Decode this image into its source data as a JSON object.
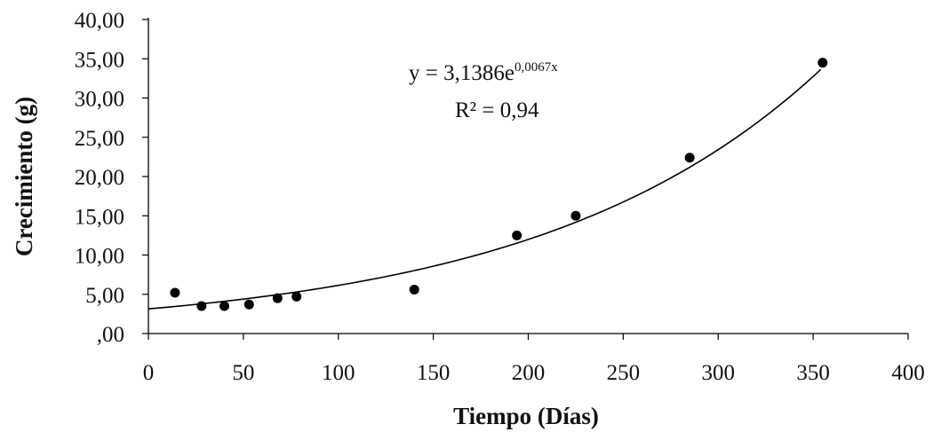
{
  "chart_data": {
    "type": "scatter",
    "title": "",
    "xlabel": "Tiempo (Días)",
    "ylabel": "Crecimiento (g)",
    "xlim": [
      0,
      400
    ],
    "ylim": [
      0,
      40
    ],
    "x_ticks": [
      0,
      50,
      100,
      150,
      200,
      250,
      300,
      350,
      400
    ],
    "x_tick_labels": [
      "0",
      "50",
      "100",
      "150",
      "200",
      "250",
      "300",
      "350",
      "400"
    ],
    "y_ticks": [
      0,
      5,
      10,
      15,
      20,
      25,
      30,
      35,
      40
    ],
    "y_tick_labels": [
      ",00",
      "5,00",
      "10,00",
      "15,00",
      "20,00",
      "25,00",
      "30,00",
      "35,00",
      "40,00"
    ],
    "grid": false,
    "legend": "none",
    "series": [
      {
        "points": [
          {
            "x": 14,
            "y": 5.2
          },
          {
            "x": 28,
            "y": 3.5
          },
          {
            "x": 40,
            "y": 3.5
          },
          {
            "x": 53,
            "y": 3.7
          },
          {
            "x": 68,
            "y": 4.5
          },
          {
            "x": 78,
            "y": 4.7
          },
          {
            "x": 140,
            "y": 5.6
          },
          {
            "x": 194,
            "y": 12.5
          },
          {
            "x": 225,
            "y": 15.0
          },
          {
            "x": 285,
            "y": 22.4
          },
          {
            "x": 355,
            "y": 34.5
          }
        ]
      }
    ],
    "trendline": {
      "type": "exponential",
      "a": 3.1386,
      "b": 0.0067,
      "x_range": [
        0,
        355
      ]
    },
    "annotation": {
      "equation_main": "y = 3,1386e",
      "equation_exponent": "0,0067x",
      "r_squared": "R² = 0,94"
    },
    "colors": {
      "points": "#000000",
      "trendline": "#000000",
      "axes": "#000000"
    }
  }
}
